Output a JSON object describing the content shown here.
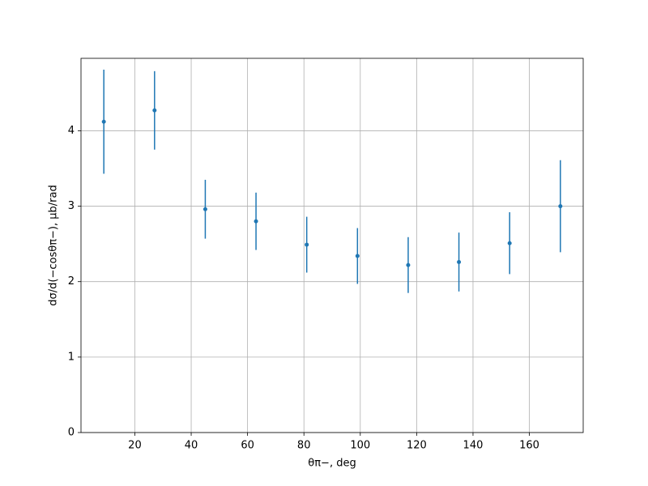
{
  "chart_data": {
    "type": "errorbar",
    "x_label": "θπ−, deg",
    "y_label": "dσ/d(−cosθπ−), μb/rad",
    "x": [
      9,
      27,
      45,
      63,
      81,
      99,
      117,
      135,
      153,
      171
    ],
    "values": [
      4.12,
      4.27,
      2.96,
      2.8,
      2.49,
      2.34,
      2.22,
      2.26,
      2.51,
      3.0
    ],
    "errors": [
      0.69,
      0.52,
      0.39,
      0.38,
      0.37,
      0.37,
      0.37,
      0.39,
      0.41,
      0.61
    ],
    "color": "#1f77b4",
    "xlim": [
      0.9,
      179.1
    ],
    "ylim": [
      0,
      4.96
    ],
    "xticks": [
      20,
      40,
      60,
      80,
      100,
      120,
      140,
      160
    ],
    "yticks": [
      0,
      1,
      2,
      3,
      4
    ],
    "grid": true
  }
}
